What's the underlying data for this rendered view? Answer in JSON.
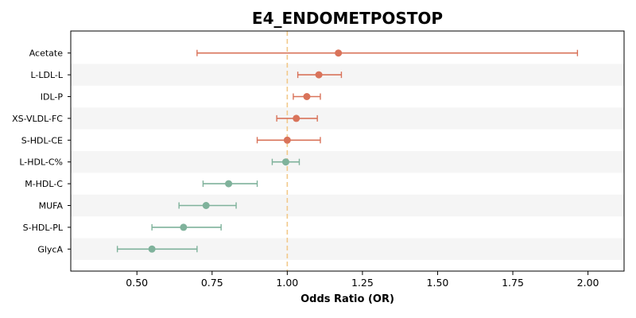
{
  "chart_data": {
    "type": "forest",
    "title": "E4_ENDOMETPOSTOP",
    "xlabel": "Odds Ratio (OR)",
    "xlim": [
      0.28,
      2.12
    ],
    "xticks": [
      0.5,
      0.75,
      1.0,
      1.25,
      1.5,
      1.75,
      2.0
    ],
    "xtick_labels": [
      "0.50",
      "0.75",
      "1.00",
      "1.25",
      "1.50",
      "1.75",
      "2.00"
    ],
    "reference_line": 1.0,
    "grid": false,
    "alternating_row_bands": true,
    "colors": {
      "risk": "#d9735a",
      "protective": "#7fb29b",
      "reference_line": "#f2c98a",
      "band": "#f5f5f5"
    },
    "rows": [
      {
        "label": "Acetate",
        "or": 1.17,
        "lower": 0.7,
        "upper": 1.965,
        "group": "risk"
      },
      {
        "label": "L-LDL-L",
        "or": 1.105,
        "lower": 1.035,
        "upper": 1.18,
        "group": "risk"
      },
      {
        "label": "IDL-P",
        "or": 1.065,
        "lower": 1.02,
        "upper": 1.11,
        "group": "risk"
      },
      {
        "label": "XS-VLDL-FC",
        "or": 1.03,
        "lower": 0.965,
        "upper": 1.1,
        "group": "risk"
      },
      {
        "label": "S-HDL-CE",
        "or": 1.0,
        "lower": 0.9,
        "upper": 1.11,
        "group": "risk"
      },
      {
        "label": "L-HDL-C%",
        "or": 0.995,
        "lower": 0.95,
        "upper": 1.04,
        "group": "protective"
      },
      {
        "label": "M-HDL-C",
        "or": 0.805,
        "lower": 0.72,
        "upper": 0.9,
        "group": "protective"
      },
      {
        "label": "MUFA",
        "or": 0.73,
        "lower": 0.64,
        "upper": 0.83,
        "group": "protective"
      },
      {
        "label": "S-HDL-PL",
        "or": 0.655,
        "lower": 0.55,
        "upper": 0.78,
        "group": "protective"
      },
      {
        "label": "GlycA",
        "or": 0.55,
        "lower": 0.435,
        "upper": 0.7,
        "group": "protective"
      }
    ]
  }
}
